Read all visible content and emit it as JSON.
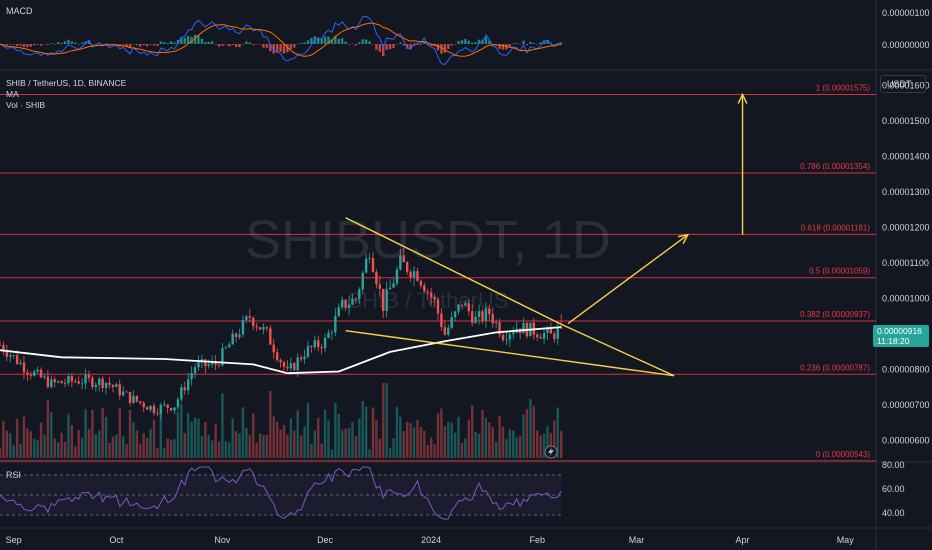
{
  "symbol_watermark": "SHIBUSDT, 1D",
  "symbol_watermark_sub": "SHIB / TetherUS",
  "legend": {
    "title": "SHIB / TetherUS, 1D, BINANCE",
    "ma_label": "MA",
    "vol_label": "Vol · SHIB"
  },
  "macd_label": "MACD",
  "macd_axis": [
    "0.00000100",
    "0.00000000"
  ],
  "rsi_label": "RSI",
  "rsi_axis": [
    "80.00",
    "60.00",
    "40.00"
  ],
  "currency": "USDT",
  "last_price": "0.00000916",
  "countdown": "11:18:20",
  "price_axis": [
    "0.00001600",
    "0.00001500",
    "0.00001400",
    "0.00001300",
    "0.00001200",
    "0.00001100",
    "0.00001000",
    "0.00000900",
    "0.00000800",
    "0.00000700",
    "0.00000600"
  ],
  "time_axis": [
    "Sep",
    "Oct",
    "Nov",
    "Dec",
    "2024",
    "Feb",
    "Mar",
    "Apr",
    "May"
  ],
  "colors": {
    "up": "#26a69a",
    "down": "#ef5350",
    "fib": "#f23645",
    "trendline": "#f7d14a",
    "ma": "#ffffff",
    "rsi": "#7e57c2",
    "macd": "#2962ff",
    "signal": "#ff6d00"
  },
  "chart_data": {
    "type": "candlestick",
    "symbol": "SHIB / TetherUS",
    "interval": "1D",
    "exchange": "BINANCE",
    "y_unit": "USDT",
    "ylim": [
      5.4e-06,
      1.63e-05
    ],
    "x_range": [
      "2023-08-28",
      "2024-05-10"
    ],
    "fib_levels": [
      {
        "ratio": "1",
        "label": "1 (0.00001575)",
        "price": 1.575e-05
      },
      {
        "ratio": "0.786",
        "label": "0.786 (0.00001354)",
        "price": 1.354e-05
      },
      {
        "ratio": "0.618",
        "label": "0.618 (0.00001181)",
        "price": 1.181e-05
      },
      {
        "ratio": "0.5",
        "label": "0.5 (0.00001059)",
        "price": 1.059e-05
      },
      {
        "ratio": "0.382",
        "label": "0.382 (0.00000937)",
        "price": 9.37e-06
      },
      {
        "ratio": "0.236",
        "label": "0.236 (0.00000787)",
        "price": 7.87e-06
      },
      {
        "ratio": "0",
        "label": "0 (0.00000543)",
        "price": 5.43e-06
      }
    ],
    "price_path": [
      [
        "2023-08-28",
        8.7e-06
      ],
      [
        "2023-09-05",
        8e-06
      ],
      [
        "2023-09-12",
        7.6e-06
      ],
      [
        "2023-09-20",
        7.7e-06
      ],
      [
        "2023-09-28",
        7.65e-06
      ],
      [
        "2023-10-05",
        7.2e-06
      ],
      [
        "2023-10-12",
        6.9e-06
      ],
      [
        "2023-10-18",
        7e-06
      ],
      [
        "2023-10-24",
        8.1e-06
      ],
      [
        "2023-10-30",
        8.15e-06
      ],
      [
        "2023-11-03",
        8.7e-06
      ],
      [
        "2023-11-09",
        9.5e-06
      ],
      [
        "2023-11-14",
        9e-06
      ],
      [
        "2023-11-20",
        7.9e-06
      ],
      [
        "2023-11-25",
        8.5e-06
      ],
      [
        "2023-12-01",
        8.8e-06
      ],
      [
        "2023-12-06",
        9.8e-06
      ],
      [
        "2023-12-10",
        1e-05
      ],
      [
        "2023-12-14",
        1.14e-05
      ],
      [
        "2023-12-18",
        9.8e-06
      ],
      [
        "2023-12-23",
        1.1e-05
      ],
      [
        "2023-12-28",
        1.07e-05
      ],
      [
        "2024-01-02",
        9.9e-06
      ],
      [
        "2024-01-05",
        9e-06
      ],
      [
        "2024-01-10",
        9.9e-06
      ],
      [
        "2024-01-14",
        9.4e-06
      ],
      [
        "2024-01-18",
        9.6e-06
      ],
      [
        "2024-01-22",
        9e-06
      ],
      [
        "2024-01-26",
        9.2e-06
      ],
      [
        "2024-01-31",
        9.1e-06
      ],
      [
        "2024-02-05",
        8.95e-06
      ],
      [
        "2024-02-08",
        9.16e-06
      ]
    ],
    "ma_path": [
      [
        "2023-08-28",
        8.55e-06
      ],
      [
        "2023-09-15",
        8.35e-06
      ],
      [
        "2023-10-15",
        8.3e-06
      ],
      [
        "2023-11-10",
        8.15e-06
      ],
      [
        "2023-11-20",
        7.9e-06
      ],
      [
        "2023-12-05",
        7.95e-06
      ],
      [
        "2023-12-20",
        8.5e-06
      ],
      [
        "2024-01-05",
        8.8e-06
      ],
      [
        "2024-01-20",
        9.05e-06
      ],
      [
        "2024-02-08",
        9.2e-06
      ]
    ],
    "trendlines": [
      {
        "from": [
          "2023-12-07",
          1.228e-05
        ],
        "to": [
          "2024-02-08",
          9.28e-06
        ]
      },
      {
        "from": [
          "2023-12-07",
          9.1e-06
        ],
        "to": [
          "2024-03-12",
          7.83e-06
        ]
      },
      {
        "from": [
          "2024-02-08",
          9.28e-06
        ],
        "to": [
          "2024-03-12",
          7.83e-06
        ]
      }
    ],
    "arrows": [
      {
        "from": [
          "2024-02-10",
          9.3e-06
        ],
        "to": [
          "2024-03-16",
          1.18e-05
        ]
      },
      {
        "from": [
          "2024-04-01",
          1.18e-05
        ],
        "to": [
          "2024-04-01",
          1.575e-05
        ]
      }
    ],
    "rsi_ylim": [
      20,
      80
    ],
    "rsi_levels": [
      70,
      50,
      30
    ]
  }
}
